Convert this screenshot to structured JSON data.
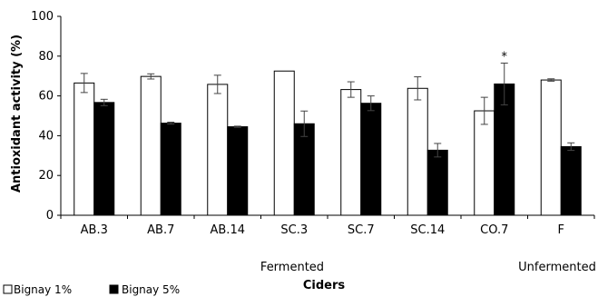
{
  "chart_data": {
    "type": "bar",
    "title": "",
    "xlabel": "Ciders",
    "ylabel": "Antioxidant activity (%)",
    "ylim": [
      0,
      100
    ],
    "yticks": [
      0,
      20,
      40,
      60,
      80,
      100
    ],
    "categories": [
      "AB.3",
      "AB.7",
      "AB.14",
      "SC.3",
      "SC.7",
      "SC.14",
      "CO.7",
      "F"
    ],
    "series": [
      {
        "name": "Bignay 1%",
        "color": "#ffffff",
        "values": [
          66.5,
          69.8,
          65.8,
          72.5,
          63.2,
          63.8,
          52.5,
          68.0
        ],
        "errors": [
          4.8,
          1.3,
          4.6,
          0.0,
          3.9,
          5.8,
          6.8,
          0.6
        ]
      },
      {
        "name": "Bignay 5%",
        "color": "#000000",
        "values": [
          56.7,
          46.3,
          44.5,
          46.0,
          56.3,
          32.7,
          66.0,
          34.5
        ],
        "errors": [
          1.6,
          0.5,
          0.3,
          6.4,
          3.7,
          3.4,
          10.5,
          1.9
        ]
      }
    ],
    "groups": [
      {
        "label": "Fermented",
        "from": 0,
        "to": 6
      },
      {
        "label": "Unfermented",
        "from": 7,
        "to": 7
      }
    ],
    "annotations": [
      {
        "text": "*",
        "category": "CO.7",
        "series": 1
      }
    ],
    "grid": false,
    "legend": "bottom-left"
  }
}
